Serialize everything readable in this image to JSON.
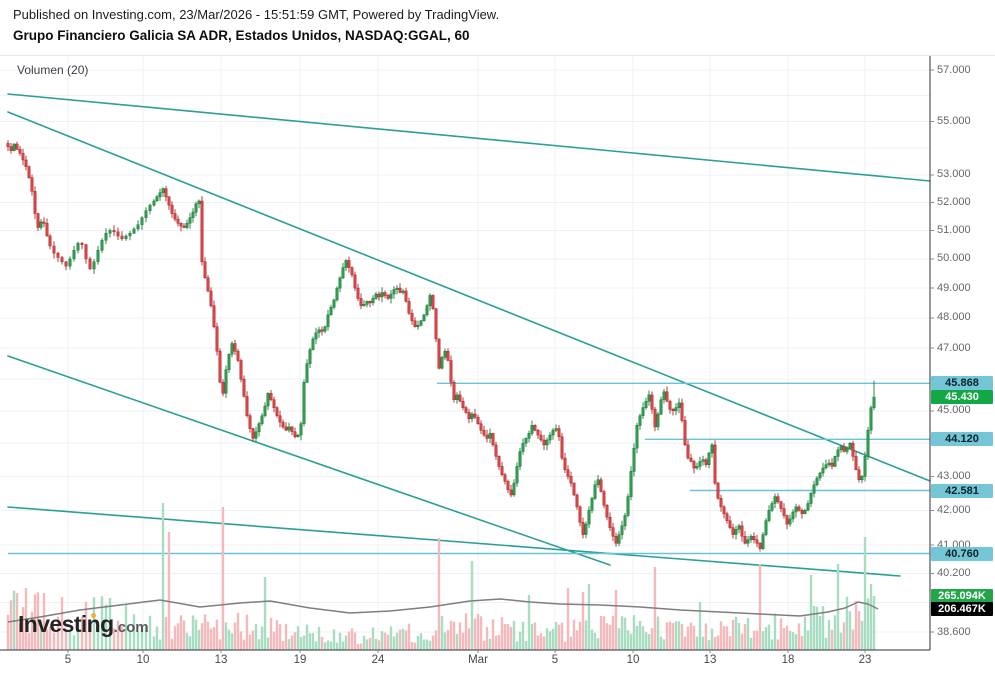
{
  "header": {
    "published": "Published on Investing.com, 23/Mar/2026 - 15:51:59 GMT, Powered by TradingView.",
    "title": "Grupo Financiero Galicia SA ADR, Estados Unidos, NASDAQ:GGAL, 60"
  },
  "legend": {
    "volume_label": "Volumen (20)"
  },
  "watermark": {
    "brand": "Investing",
    "tld": ".com"
  },
  "colors": {
    "up": "#2e9e4f",
    "up_border": "#1d7a39",
    "down": "#dc4446",
    "down_border": "#a92b2d",
    "vol_up": "#a9ddc1",
    "vol_down": "#f5b9bb",
    "trend": "#2aa095",
    "level": "#68c2da",
    "level_badge_bg": "#74c6d7",
    "level_badge_text": "#07232b",
    "last_badge_bg": "#12a846",
    "vol_badge_up_bg": "#22a649",
    "vol_badge_ma_bg": "#000000",
    "grid": "#eef1f4",
    "axis_line": "#2f3138",
    "axis_text": "#666666",
    "volume_ma_line": "#7e7e7e"
  },
  "y_axis": {
    "labels": [
      {
        "text": "57.000",
        "price": 57.0
      },
      {
        "text": "55.000",
        "price": 55.0
      },
      {
        "text": "53.000",
        "price": 53.0
      },
      {
        "text": "52.000",
        "price": 52.0
      },
      {
        "text": "51.000",
        "price": 51.0
      },
      {
        "text": "50.000",
        "price": 50.0
      },
      {
        "text": "49.000",
        "price": 49.0
      },
      {
        "text": "48.000",
        "price": 48.0
      },
      {
        "text": "47.000",
        "price": 47.0
      },
      {
        "text": "45.000",
        "price": 45.0
      },
      {
        "text": "43.000",
        "price": 43.0
      },
      {
        "text": "42.000",
        "price": 42.0
      },
      {
        "text": "41.000",
        "price": 41.0
      },
      {
        "text": "40.200",
        "price": 40.2
      },
      {
        "text": "38.600",
        "price": 38.6
      }
    ],
    "badges": [
      {
        "text": "45.868",
        "price": 45.868,
        "style": "level"
      },
      {
        "text": "45.430",
        "price": 45.43,
        "style": "last"
      },
      {
        "text": "44.120",
        "price": 44.12,
        "style": "level"
      },
      {
        "text": "42.581",
        "price": 42.581,
        "style": "level"
      },
      {
        "text": "40.760",
        "price": 40.76,
        "style": "level"
      },
      {
        "text": "265.094K",
        "y": 596,
        "style": "vol-up"
      },
      {
        "text": "206.467K",
        "y": 609,
        "style": "vol-ma"
      }
    ]
  },
  "x_axis": {
    "labels": [
      {
        "text": "5",
        "x": 68
      },
      {
        "text": "10",
        "x": 143
      },
      {
        "text": "13",
        "x": 221
      },
      {
        "text": "19",
        "x": 300
      },
      {
        "text": "24",
        "x": 378
      },
      {
        "text": "Mar",
        "x": 478
      },
      {
        "text": "5",
        "x": 555
      },
      {
        "text": "10",
        "x": 633
      },
      {
        "text": "13",
        "x": 710
      },
      {
        "text": "18",
        "x": 788
      },
      {
        "text": "23",
        "x": 865
      }
    ]
  },
  "chart_data": {
    "type": "candlestick+volume",
    "symbol": "NASDAQ:GGAL",
    "interval_minutes": 60,
    "price_scale": "log",
    "ylim": [
      38.6,
      57.0
    ],
    "last_price": 45.43,
    "last_high": 45.95,
    "last_volume": "265.094K",
    "volume_ma_value": "206.467K",
    "grid_prices": [
      57,
      56,
      55,
      54,
      53,
      52,
      51,
      50,
      49,
      48,
      47,
      46,
      45,
      44,
      43,
      42,
      41,
      40.2,
      39.4,
      38.6
    ],
    "levels": [
      {
        "price": 45.868,
        "x_start": 437
      },
      {
        "price": 44.12,
        "x_start": 645
      },
      {
        "price": 42.581,
        "x_start": 690
      },
      {
        "price": 40.76,
        "x_start": 8
      }
    ],
    "trendlines": [
      {
        "x1": 8,
        "y1": 94,
        "x2": 930,
        "y2": 181
      },
      {
        "x1": 8,
        "y1": 112,
        "x2": 930,
        "y2": 481
      },
      {
        "x1": 8,
        "y1": 356,
        "x2": 610,
        "y2": 565
      },
      {
        "x1": 8,
        "y1": 507,
        "x2": 900,
        "y2": 576
      }
    ],
    "anchors": [
      [
        8,
        54.05
      ],
      [
        11,
        53.9
      ],
      [
        14,
        54.15
      ],
      [
        17,
        53.95
      ],
      [
        20,
        53.8
      ],
      [
        23,
        53.55
      ],
      [
        26,
        53.3
      ],
      [
        29,
        52.9
      ],
      [
        32,
        52.4
      ],
      [
        35,
        51.6
      ],
      [
        38,
        51.1
      ],
      [
        41,
        51.3
      ],
      [
        44,
        51.25
      ],
      [
        47,
        50.8
      ],
      [
        50,
        50.45
      ],
      [
        54,
        50.2
      ],
      [
        58,
        50.05
      ],
      [
        62,
        49.9
      ],
      [
        66,
        49.75
      ],
      [
        70,
        50.0
      ],
      [
        74,
        50.3
      ],
      [
        78,
        50.55
      ],
      [
        82,
        50.5
      ],
      [
        86,
        50.0
      ],
      [
        90,
        49.65
      ],
      [
        94,
        49.9
      ],
      [
        98,
        50.3
      ],
      [
        102,
        50.65
      ],
      [
        106,
        50.9
      ],
      [
        110,
        51.0
      ],
      [
        114,
        50.95
      ],
      [
        118,
        50.8
      ],
      [
        122,
        50.7
      ],
      [
        126,
        50.8
      ],
      [
        130,
        50.9
      ],
      [
        134,
        51.05
      ],
      [
        138,
        51.2
      ],
      [
        142,
        51.45
      ],
      [
        146,
        51.7
      ],
      [
        150,
        51.9
      ],
      [
        154,
        52.05
      ],
      [
        157,
        52.2
      ],
      [
        160,
        52.35
      ],
      [
        163,
        52.5
      ],
      [
        166,
        52.2
      ],
      [
        169,
        51.9
      ],
      [
        172,
        51.6
      ],
      [
        175,
        51.4
      ],
      [
        178,
        51.25
      ],
      [
        181,
        51.15
      ],
      [
        184,
        51.1
      ],
      [
        187,
        51.25
      ],
      [
        190,
        51.45
      ],
      [
        193,
        51.65
      ],
      [
        196,
        51.95
      ],
      [
        199,
        52.05
      ],
      [
        202,
        49.9
      ],
      [
        205,
        49.35
      ],
      [
        208,
        48.9
      ],
      [
        211,
        48.4
      ],
      [
        214,
        47.7
      ],
      [
        217,
        46.9
      ],
      [
        220,
        45.9
      ],
      [
        223,
        45.55
      ],
      [
        226,
        46.3
      ],
      [
        229,
        46.8
      ],
      [
        232,
        47.15
      ],
      [
        235,
        46.9
      ],
      [
        238,
        46.6
      ],
      [
        241,
        46.0
      ],
      [
        244,
        45.45
      ],
      [
        247,
        44.85
      ],
      [
        250,
        44.45
      ],
      [
        253,
        44.15
      ],
      [
        256,
        44.35
      ],
      [
        259,
        44.6
      ],
      [
        262,
        44.85
      ],
      [
        265,
        45.15
      ],
      [
        268,
        45.55
      ],
      [
        271,
        45.35
      ],
      [
        274,
        45.1
      ],
      [
        277,
        44.85
      ],
      [
        280,
        44.65
      ],
      [
        283,
        44.5
      ],
      [
        286,
        44.4
      ],
      [
        289,
        44.5
      ],
      [
        292,
        44.35
      ],
      [
        295,
        44.2
      ],
      [
        298,
        44.25
      ],
      [
        301,
        44.6
      ],
      [
        304,
        45.9
      ],
      [
        307,
        46.5
      ],
      [
        310,
        46.95
      ],
      [
        313,
        47.3
      ],
      [
        316,
        47.5
      ],
      [
        319,
        47.6
      ],
      [
        322,
        47.55
      ],
      [
        325,
        47.7
      ],
      [
        328,
        48.1
      ],
      [
        331,
        48.35
      ],
      [
        334,
        48.6
      ],
      [
        337,
        49.0
      ],
      [
        340,
        49.35
      ],
      [
        343,
        49.7
      ],
      [
        346,
        49.95
      ],
      [
        349,
        49.7
      ],
      [
        352,
        49.45
      ],
      [
        355,
        49.0
      ],
      [
        358,
        48.65
      ],
      [
        361,
        48.4
      ],
      [
        364,
        48.45
      ],
      [
        367,
        48.55
      ],
      [
        370,
        48.5
      ],
      [
        373,
        48.65
      ],
      [
        376,
        48.8
      ],
      [
        379,
        48.7
      ],
      [
        382,
        48.85
      ],
      [
        385,
        48.75
      ],
      [
        388,
        48.65
      ],
      [
        391,
        48.8
      ],
      [
        394,
        48.95
      ],
      [
        397,
        49.0
      ],
      [
        400,
        48.85
      ],
      [
        403,
        48.9
      ],
      [
        406,
        48.55
      ],
      [
        409,
        48.15
      ],
      [
        412,
        47.9
      ],
      [
        415,
        47.7
      ],
      [
        418,
        47.75
      ],
      [
        421,
        47.9
      ],
      [
        424,
        48.1
      ],
      [
        427,
        48.4
      ],
      [
        430,
        48.75
      ],
      [
        433,
        48.3
      ],
      [
        436,
        47.3
      ],
      [
        439,
        46.35
      ],
      [
        442,
        46.7
      ],
      [
        445,
        46.9
      ],
      [
        448,
        46.6
      ],
      [
        451,
        45.9
      ],
      [
        454,
        45.35
      ],
      [
        457,
        45.5
      ],
      [
        460,
        45.3
      ],
      [
        463,
        45.1
      ],
      [
        466,
        44.95
      ],
      [
        469,
        44.75
      ],
      [
        472,
        44.9
      ],
      [
        475,
        44.8
      ],
      [
        478,
        44.6
      ],
      [
        481,
        44.4
      ],
      [
        484,
        44.25
      ],
      [
        487,
        44.15
      ],
      [
        490,
        44.3
      ],
      [
        493,
        43.95
      ],
      [
        496,
        43.6
      ],
      [
        499,
        43.3
      ],
      [
        502,
        43.05
      ],
      [
        505,
        42.85
      ],
      [
        508,
        42.6
      ],
      [
        511,
        42.45
      ],
      [
        514,
        42.8
      ],
      [
        517,
        43.3
      ],
      [
        520,
        43.75
      ],
      [
        523,
        44.0
      ],
      [
        526,
        44.15
      ],
      [
        529,
        44.3
      ],
      [
        532,
        44.55
      ],
      [
        535,
        44.4
      ],
      [
        538,
        44.25
      ],
      [
        541,
        44.1
      ],
      [
        544,
        43.95
      ],
      [
        547,
        44.1
      ],
      [
        550,
        44.25
      ],
      [
        553,
        44.4
      ],
      [
        556,
        44.45
      ],
      [
        559,
        44.2
      ],
      [
        562,
        43.55
      ],
      [
        565,
        43.2
      ],
      [
        568,
        43.0
      ],
      [
        571,
        42.8
      ],
      [
        574,
        42.45
      ],
      [
        577,
        42.1
      ],
      [
        580,
        41.65
      ],
      [
        583,
        41.3
      ],
      [
        586,
        41.6
      ],
      [
        589,
        42.0
      ],
      [
        592,
        42.35
      ],
      [
        595,
        42.75
      ],
      [
        598,
        42.9
      ],
      [
        601,
        42.55
      ],
      [
        604,
        42.15
      ],
      [
        607,
        41.8
      ],
      [
        610,
        41.5
      ],
      [
        613,
        41.25
      ],
      [
        616,
        41.05
      ],
      [
        619,
        41.3
      ],
      [
        622,
        41.55
      ],
      [
        625,
        41.85
      ],
      [
        628,
        42.4
      ],
      [
        631,
        43.15
      ],
      [
        634,
        43.85
      ],
      [
        637,
        44.55
      ],
      [
        640,
        44.85
      ],
      [
        643,
        45.1
      ],
      [
        646,
        45.3
      ],
      [
        649,
        45.5
      ],
      [
        652,
        45.05
      ],
      [
        655,
        44.5
      ],
      [
        658,
        44.9
      ],
      [
        661,
        45.35
      ],
      [
        664,
        45.6
      ],
      [
        667,
        45.3
      ],
      [
        670,
        45.05
      ],
      [
        673,
        45.0
      ],
      [
        676,
        45.1
      ],
      [
        679,
        45.25
      ],
      [
        682,
        44.7
      ],
      [
        685,
        43.95
      ],
      [
        688,
        43.55
      ],
      [
        691,
        43.45
      ],
      [
        694,
        43.25
      ],
      [
        697,
        43.3
      ],
      [
        700,
        43.45
      ],
      [
        703,
        43.5
      ],
      [
        706,
        43.35
      ],
      [
        709,
        43.7
      ],
      [
        712,
        43.95
      ],
      [
        715,
        42.8
      ],
      [
        718,
        42.35
      ],
      [
        721,
        42.1
      ],
      [
        724,
        41.9
      ],
      [
        727,
        41.7
      ],
      [
        730,
        41.5
      ],
      [
        733,
        41.3
      ],
      [
        736,
        41.45
      ],
      [
        739,
        41.55
      ],
      [
        742,
        41.25
      ],
      [
        745,
        41.05
      ],
      [
        748,
        41.15
      ],
      [
        751,
        41.25
      ],
      [
        754,
        41.15
      ],
      [
        757,
        41.05
      ],
      [
        760,
        40.9
      ],
      [
        763,
        41.3
      ],
      [
        766,
        41.7
      ],
      [
        769,
        42.0
      ],
      [
        772,
        42.2
      ],
      [
        775,
        42.4
      ],
      [
        778,
        42.25
      ],
      [
        781,
        42.05
      ],
      [
        784,
        41.85
      ],
      [
        787,
        41.6
      ],
      [
        790,
        41.75
      ],
      [
        793,
        41.95
      ],
      [
        796,
        42.1
      ],
      [
        799,
        42.0
      ],
      [
        802,
        41.9
      ],
      [
        805,
        42.0
      ],
      [
        808,
        42.2
      ],
      [
        811,
        42.5
      ],
      [
        814,
        42.75
      ],
      [
        817,
        42.95
      ],
      [
        820,
        43.1
      ],
      [
        823,
        43.25
      ],
      [
        826,
        43.35
      ],
      [
        829,
        43.4
      ],
      [
        832,
        43.3
      ],
      [
        835,
        43.6
      ],
      [
        838,
        43.8
      ],
      [
        841,
        43.9
      ],
      [
        844,
        43.75
      ],
      [
        847,
        43.85
      ],
      [
        850,
        44.0
      ],
      [
        853,
        43.6
      ],
      [
        856,
        43.2
      ],
      [
        859,
        42.9
      ],
      [
        862,
        43.0
      ],
      [
        865,
        43.6
      ],
      [
        868,
        44.4
      ],
      [
        871,
        45.1
      ],
      [
        874,
        45.43
      ]
    ],
    "volume_spikes": [
      [
        163,
        147
      ],
      [
        169,
        118
      ],
      [
        223,
        143
      ],
      [
        265,
        73
      ],
      [
        439,
        112
      ],
      [
        472,
        89
      ],
      [
        529,
        55
      ],
      [
        568,
        62
      ],
      [
        583,
        58
      ],
      [
        589,
        66
      ],
      [
        616,
        60
      ],
      [
        655,
        83
      ],
      [
        700,
        48
      ],
      [
        760,
        86
      ],
      [
        811,
        75
      ],
      [
        838,
        86
      ],
      [
        865,
        113
      ],
      [
        871,
        66
      ],
      [
        874,
        54
      ]
    ],
    "volume_envelope": [
      [
        8,
        52
      ],
      [
        40,
        46
      ],
      [
        70,
        44
      ],
      [
        100,
        42
      ],
      [
        130,
        40
      ],
      [
        160,
        30
      ],
      [
        200,
        26
      ],
      [
        240,
        28
      ],
      [
        280,
        24
      ],
      [
        320,
        18
      ],
      [
        360,
        16
      ],
      [
        400,
        20
      ],
      [
        430,
        26
      ],
      [
        470,
        28
      ],
      [
        510,
        24
      ],
      [
        550,
        20
      ],
      [
        590,
        28
      ],
      [
        630,
        26
      ],
      [
        670,
        24
      ],
      [
        710,
        22
      ],
      [
        750,
        26
      ],
      [
        790,
        28
      ],
      [
        820,
        34
      ],
      [
        850,
        40
      ],
      [
        874,
        46
      ]
    ],
    "volume_ma": [
      [
        8,
        622
      ],
      [
        40,
        617
      ],
      [
        80,
        610
      ],
      [
        120,
        605
      ],
      [
        160,
        600
      ],
      [
        200,
        607
      ],
      [
        240,
        603
      ],
      [
        270,
        601
      ],
      [
        310,
        608
      ],
      [
        350,
        613
      ],
      [
        390,
        611
      ],
      [
        430,
        607
      ],
      [
        470,
        601
      ],
      [
        500,
        599
      ],
      [
        530,
        602
      ],
      [
        560,
        604
      ],
      [
        600,
        605
      ],
      [
        640,
        607
      ],
      [
        680,
        610
      ],
      [
        720,
        612
      ],
      [
        760,
        614
      ],
      [
        800,
        616
      ],
      [
        828,
        612
      ],
      [
        845,
        608
      ],
      [
        858,
        602
      ],
      [
        868,
        604
      ],
      [
        878,
        609
      ]
    ]
  }
}
